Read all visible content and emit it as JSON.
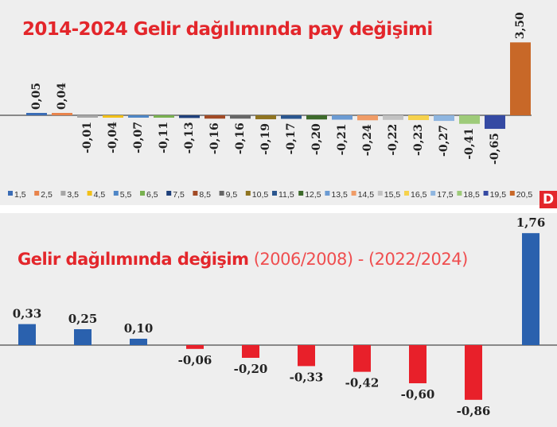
{
  "chart_data": [
    {
      "type": "bar",
      "title": "2014-2024 Gelir dağılımında pay değişimi",
      "xlabel": "",
      "ylabel": "",
      "categories": [
        "1,5",
        "2,5",
        "3,5",
        "4,5",
        "5,5",
        "6,5",
        "7,5",
        "8,5",
        "9,5",
        "10,5",
        "11,5",
        "12,5",
        "13,5",
        "14,5",
        "15,5",
        "16,5",
        "17,5",
        "18,5",
        "19,5",
        "20,5"
      ],
      "values": [
        0.05,
        0.04,
        -0.01,
        -0.04,
        -0.07,
        -0.11,
        -0.13,
        -0.16,
        -0.16,
        -0.19,
        -0.17,
        -0.2,
        -0.21,
        -0.24,
        -0.22,
        -0.23,
        -0.27,
        -0.41,
        -0.65,
        3.5
      ],
      "labels": [
        "0,05",
        "0,04",
        "-0,01",
        "-0,04",
        "-0,07",
        "-0,11",
        "-0,13",
        "-0,16",
        "-0,16",
        "-0,19",
        "-0,17",
        "-0,20",
        "-0,21",
        "-0,24",
        "-0,22",
        "-0,23",
        "-0,27",
        "-0,41",
        "-0,65",
        "3,50"
      ],
      "colors": [
        "#3a6cb5",
        "#e8834b",
        "#a6a6a6",
        "#f2c018",
        "#4e86c6",
        "#79b150",
        "#1e3f7a",
        "#a24a25",
        "#666666",
        "#8f7420",
        "#2a568f",
        "#3d6a2b",
        "#6b9bd3",
        "#f09c67",
        "#c2c2c2",
        "#f6d24d",
        "#8fb6e0",
        "#9ecb79",
        "#354aa3",
        "#c86828"
      ],
      "legend": "bottom",
      "grid": false,
      "ylim": [
        -1.0,
        3.6
      ]
    },
    {
      "type": "bar",
      "title": "Gelir dağılımında değişim",
      "subtitle": "(2006/2008) - (2022/2024)",
      "xlabel": "",
      "ylabel": "",
      "values": [
        0.33,
        0.25,
        0.1,
        -0.06,
        -0.2,
        -0.33,
        -0.42,
        -0.6,
        -0.86,
        1.76
      ],
      "labels": [
        "0,33",
        "0,25",
        "0,10",
        "-0,06",
        "-0,20",
        "-0,33",
        "-0,42",
        "-0,60",
        "-0,86",
        "1,76"
      ],
      "colors": {
        "positive": "#2a61ae",
        "negative": "#e8202a"
      },
      "legend": "none",
      "grid": false,
      "ylim": [
        -1.0,
        1.8
      ]
    }
  ],
  "brand": {
    "logo_letter": "D",
    "color": "#e3262b"
  }
}
